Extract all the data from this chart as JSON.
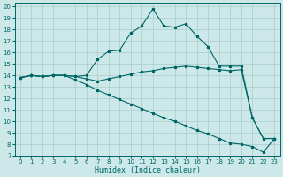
{
  "xlabel": "Humidex (Indice chaleur)",
  "background_color": "#cce8e8",
  "grid_color": "#aacccc",
  "line_color": "#006666",
  "xlim": [
    -0.5,
    23.5
  ],
  "ylim": [
    7,
    20.3
  ],
  "xticks": [
    0,
    1,
    2,
    3,
    4,
    5,
    6,
    7,
    8,
    9,
    10,
    11,
    12,
    13,
    14,
    15,
    16,
    17,
    18,
    19,
    20,
    21,
    22,
    23
  ],
  "yticks": [
    7,
    8,
    9,
    10,
    11,
    12,
    13,
    14,
    15,
    16,
    17,
    18,
    19,
    20
  ],
  "series1_x": [
    0,
    1,
    2,
    3,
    4,
    5,
    6,
    7,
    8,
    9,
    10,
    11,
    12,
    13,
    14,
    15,
    16,
    17,
    18,
    19,
    20,
    21,
    22,
    23
  ],
  "series1_y": [
    13.8,
    14.0,
    13.9,
    14.0,
    14.0,
    13.9,
    14.0,
    15.4,
    16.1,
    16.2,
    17.7,
    18.3,
    19.8,
    18.3,
    18.2,
    18.5,
    17.4,
    16.5,
    14.8,
    14.8,
    14.8,
    10.3,
    8.5,
    8.5
  ],
  "series2_x": [
    0,
    1,
    2,
    3,
    4,
    5,
    6,
    7,
    8,
    9,
    10,
    11,
    12,
    13,
    14,
    15,
    16,
    17,
    18,
    19,
    20,
    21,
    22,
    23
  ],
  "series2_y": [
    13.8,
    14.0,
    13.9,
    14.0,
    14.0,
    13.9,
    13.7,
    13.5,
    13.7,
    13.9,
    14.1,
    14.3,
    14.4,
    14.6,
    14.7,
    14.8,
    14.7,
    14.6,
    14.5,
    14.4,
    14.5,
    10.3,
    8.5,
    8.5
  ],
  "series3_x": [
    0,
    1,
    2,
    3,
    4,
    5,
    6,
    7,
    8,
    9,
    10,
    11,
    12,
    13,
    14,
    15,
    16,
    17,
    18,
    19,
    20,
    21,
    22,
    23
  ],
  "series3_y": [
    13.8,
    14.0,
    13.9,
    14.0,
    14.0,
    13.6,
    13.2,
    12.7,
    12.3,
    11.9,
    11.5,
    11.1,
    10.7,
    10.3,
    10.0,
    9.6,
    9.2,
    8.9,
    8.5,
    8.1,
    8.0,
    7.8,
    7.3,
    8.5
  ]
}
